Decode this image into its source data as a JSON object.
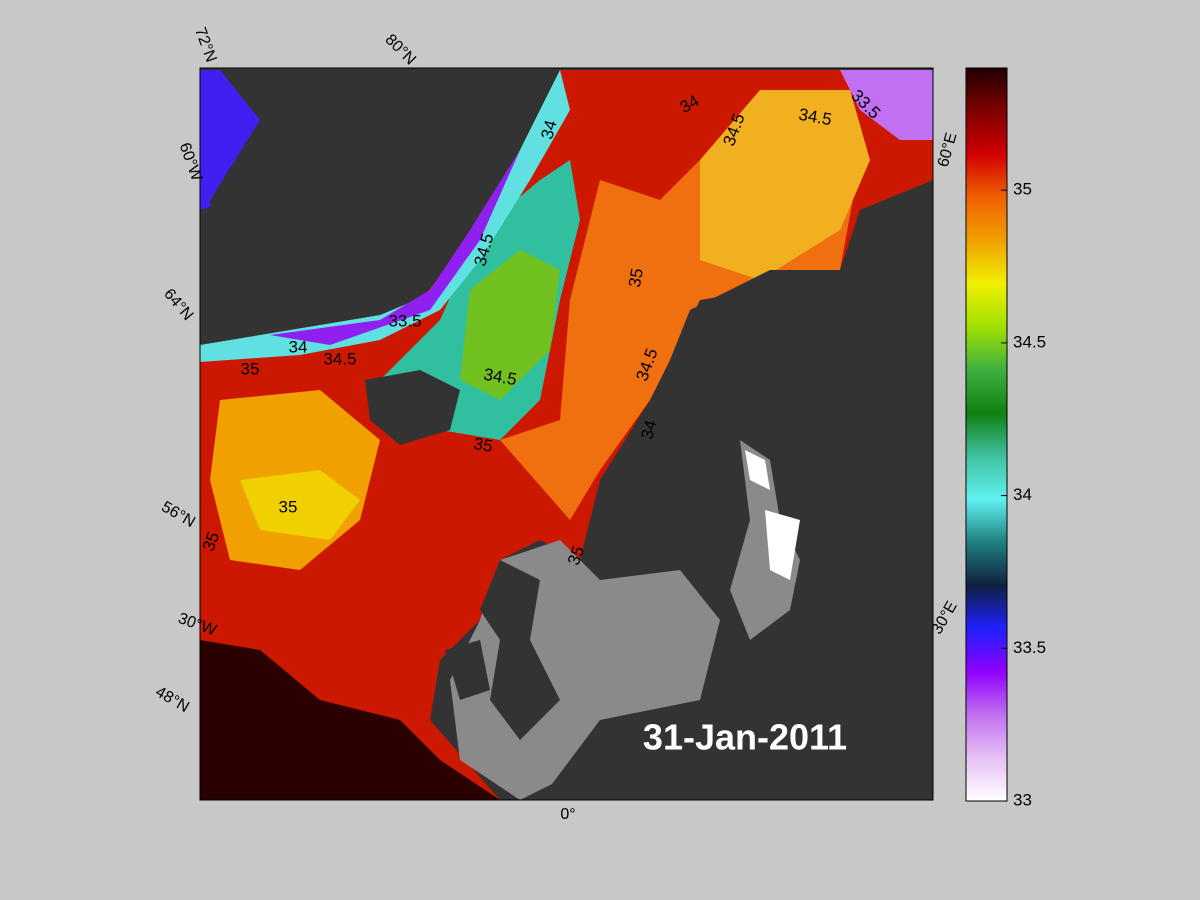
{
  "map": {
    "date": "31-Jan-2011",
    "grid_labels": [
      "72°N",
      "80°N",
      "60°W",
      "64°N",
      "56°N",
      "30°W",
      "48°N",
      "0°",
      "30°E",
      "60°E"
    ],
    "contour_labels": [
      "34",
      "34",
      "34.5",
      "34.5",
      "33.5",
      "34.5",
      "35",
      "33.5",
      "34",
      "34.5",
      "35",
      "34.5",
      "34.5",
      "34",
      "35",
      "35",
      "35",
      "35"
    ],
    "colorbar": {
      "lim": [
        33,
        35.4
      ],
      "ticks": [
        33,
        33.5,
        34,
        34.5,
        35
      ],
      "colors": [
        "#ffffff",
        "#e6c0f5",
        "#c070f0",
        "#9000ff",
        "#2020ff",
        "#102040",
        "#208080",
        "#60f0f0",
        "#40c0a0",
        "#108010",
        "#40b040",
        "#a0e000",
        "#f0f000",
        "#f0a000",
        "#f06000",
        "#d00000",
        "#800000",
        "#200000"
      ]
    }
  }
}
